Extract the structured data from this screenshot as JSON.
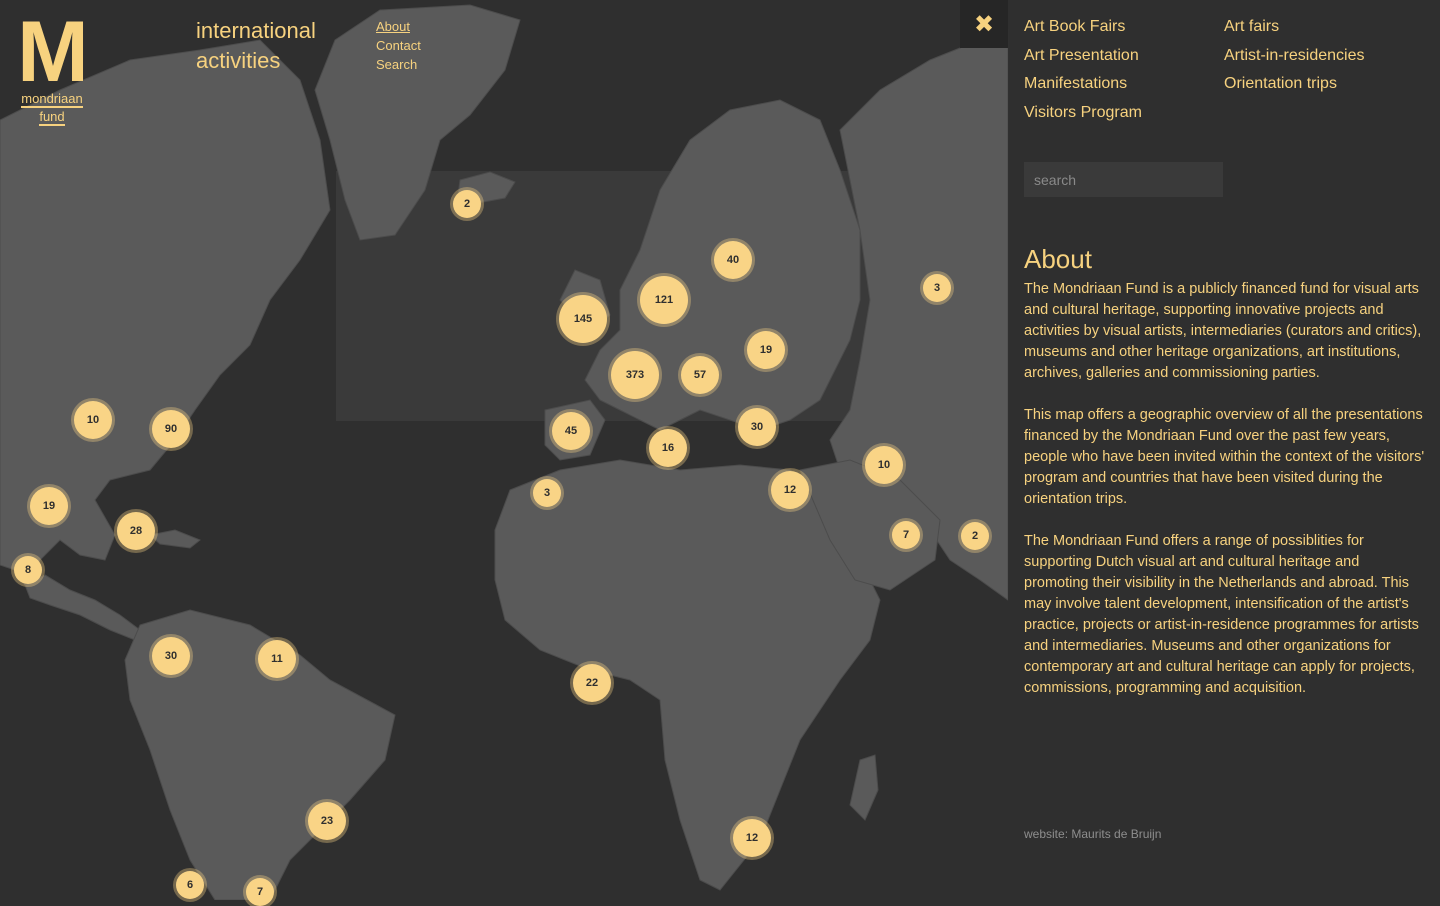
{
  "logo": {
    "letter": "M",
    "line1": "mondriaan",
    "line2": "fund"
  },
  "site_title": {
    "line1": "international",
    "line2": "activities"
  },
  "topnav": [
    "About",
    "Contact",
    "Search"
  ],
  "categories": [
    "Art Book Fairs",
    "Art fairs",
    "Art Presentation",
    "Artist-in-residencies",
    "Manifestations",
    "Orientation trips",
    "Visitors Program"
  ],
  "search": {
    "placeholder": "search"
  },
  "about": {
    "title": "About",
    "paragraphs": [
      "The Mondriaan Fund is a publicly financed fund for visual arts and cultural heritage, supporting innovative projects and activities by visual artists, intermediaries (curators and critics), museums and other heritage organizations, art institutions, archives, galleries and commissioning parties.",
      "This map offers a geographic overview of all the presentations financed by the Mondriaan Fund over the past few years, people who have been invited within the context of the visitors' program and countries that have been visited during the orientation trips.",
      "The Mondriaan Fund offers a range of possiblities for supporting Dutch visual art and cultural heritage and promoting their visibility in the Netherlands and abroad. This may involve talent development, intensification of the artist's practice, projects or artist-in-residence programmes for artists and intermediaries. Museums and other organizations for contemporary art and cultural heritage can apply for projects, commissions, programming and acquisition."
    ]
  },
  "credit": "website: Maurits de Bruijn",
  "close_icon": "close-icon",
  "colors": {
    "accent": "#f7d27f",
    "marker": "#f9d486",
    "land": "#5a5a5a",
    "sea": "#2f2f2f"
  },
  "clusters": [
    "2",
    "40",
    "121",
    "145",
    "19",
    "373",
    "57",
    "3",
    "10",
    "90",
    "45",
    "30",
    "16",
    "3",
    "19",
    "28",
    "12",
    "10",
    "7",
    "2",
    "8",
    "30",
    "11",
    "22",
    "23",
    "12",
    "6",
    "7"
  ]
}
